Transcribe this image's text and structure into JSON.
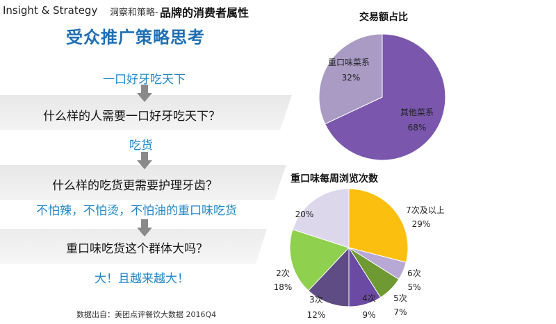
{
  "header": {
    "brand_en": "Insight & Strategy",
    "brand_cn": "洞察和策略-",
    "subtitle": "品牌的消费者属性",
    "title": "受众推广策略思考"
  },
  "flow": [
    {
      "text": "一口好牙吃天下",
      "style": "blue"
    },
    {
      "text": "什么样的人需要一口好牙吃天下？",
      "style": "dark"
    },
    {
      "text": "吃货",
      "style": "blue"
    },
    {
      "text": "什么样的吃货更需要护理牙齿？",
      "style": "dark"
    },
    {
      "text": "不怕辣，不怕烫，不怕油的重口味吃货",
      "style": "blue"
    },
    {
      "text": "重口味吃货这个群体大吗？",
      "style": "dark"
    },
    {
      "text": "大！且越来越大！",
      "style": "blue"
    }
  ],
  "source": "数据出自：美团点评餐饮大数据 2016Q4",
  "chart_data": [
    {
      "type": "pie",
      "title": "交易额占比",
      "categories": [
        "重口味菜系",
        "其他菜系"
      ],
      "values": [
        32,
        68
      ],
      "value_labels": [
        "32%",
        "68%"
      ],
      "colors": [
        "#a99bc4",
        "#7a57ad"
      ]
    },
    {
      "type": "pie",
      "title": "重口味每周浏览次数",
      "categories": [
        "7次及以上",
        "6次",
        "5次",
        "4次",
        "3次",
        "2次",
        ""
      ],
      "values": [
        29,
        5,
        7,
        9,
        12,
        18,
        20
      ],
      "value_labels": [
        "29%",
        "5%",
        "7%",
        "9%",
        "12%",
        "18%",
        "20%"
      ],
      "colors": [
        "#fbbf10",
        "#b7a8d6",
        "#6f9a33",
        "#6a4aa3",
        "#604c85",
        "#8fd04e",
        "#ddd7ec"
      ]
    }
  ]
}
